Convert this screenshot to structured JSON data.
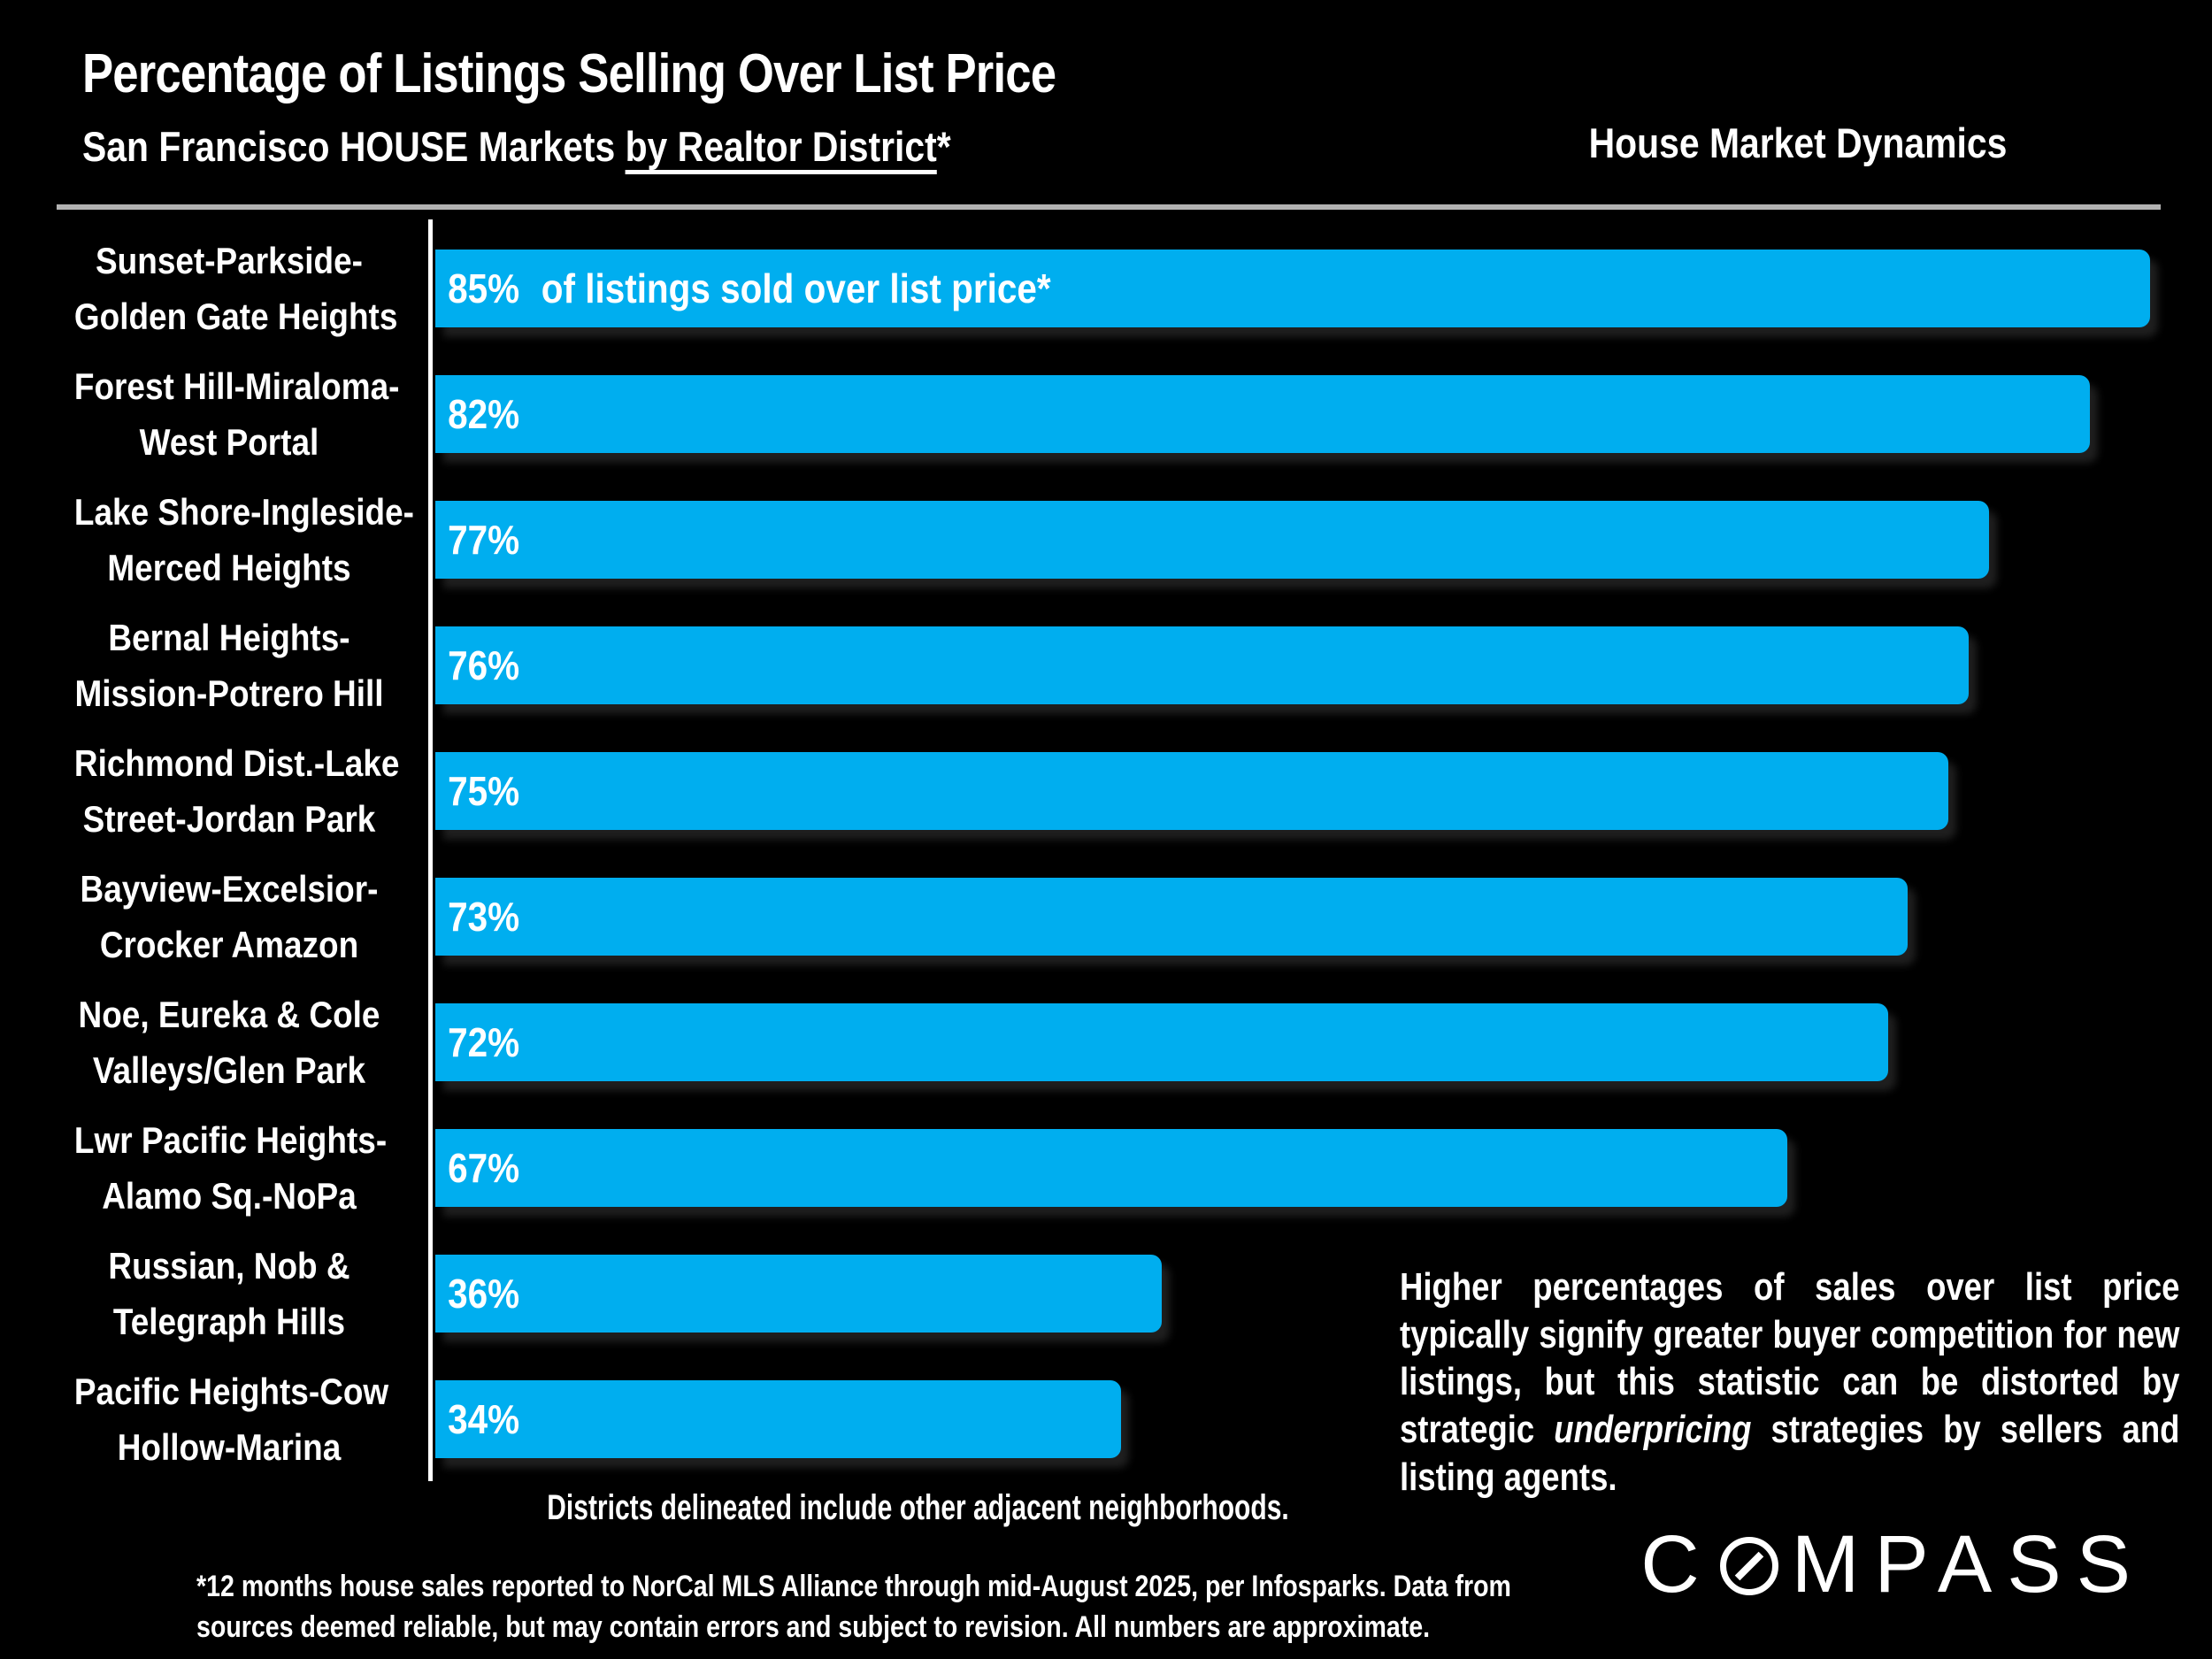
{
  "header": {
    "title": "Percentage of Listings Selling Over List Price",
    "subtitle_prefix": "San Francisco HOUSE Markets ",
    "subtitle_underline": "by Realtor District",
    "subtitle_suffix": "*",
    "right_title": "House Market Dynamics"
  },
  "chart_data": {
    "type": "bar",
    "orientation": "horizontal",
    "title": "Percentage of Listings Selling Over List Price",
    "xlabel": "% of listings sold over list price",
    "xlim": [
      0,
      85
    ],
    "grid": false,
    "legend": false,
    "bar_color": "#00aeef",
    "categories": [
      "Sunset-Parkside-Golden Gate Heights",
      "Forest Hill-Miraloma-West Portal",
      "Lake Shore-Ingleside-Merced Heights",
      "Bernal Heights-Mission-Potrero Hill",
      "Richmond Dist.-Lake Street-Jordan Park",
      "Bayview-Excelsior-Crocker Amazon",
      "Noe, Eureka & Cole Valleys/Glen Park",
      "Lwr Pacific Heights-Alamo Sq.-NoPa",
      "Russian, Nob & Telegraph Hills",
      "Pacific Heights-Cow Hollow-Marina"
    ],
    "values": [
      85,
      82,
      77,
      76,
      75,
      73,
      72,
      67,
      36,
      34
    ],
    "rows": [
      {
        "label_lines": [
          "Sunset-Parkside-",
          "Golden Gate Heights"
        ],
        "value": 85,
        "value_label": "85%",
        "bar_note": "of listings sold over list price*"
      },
      {
        "label_lines": [
          "Forest Hill-Miraloma-",
          "West Portal"
        ],
        "value": 82,
        "value_label": "82%",
        "bar_note": ""
      },
      {
        "label_lines": [
          "Lake Shore-Ingleside-",
          "Merced Heights"
        ],
        "value": 77,
        "value_label": "77%",
        "bar_note": ""
      },
      {
        "label_lines": [
          "Bernal Heights-",
          "Mission-Potrero Hill"
        ],
        "value": 76,
        "value_label": "76%",
        "bar_note": ""
      },
      {
        "label_lines": [
          "Richmond Dist.-Lake",
          "Street-Jordan Park"
        ],
        "value": 75,
        "value_label": "75%",
        "bar_note": ""
      },
      {
        "label_lines": [
          "Bayview-Excelsior-",
          "Crocker Amazon"
        ],
        "value": 73,
        "value_label": "73%",
        "bar_note": ""
      },
      {
        "label_lines": [
          "Noe, Eureka & Cole",
          "Valleys/Glen Park"
        ],
        "value": 72,
        "value_label": "72%",
        "bar_note": ""
      },
      {
        "label_lines": [
          "Lwr Pacific Heights-",
          "Alamo Sq.-NoPa"
        ],
        "value": 67,
        "value_label": "67%",
        "bar_note": ""
      },
      {
        "label_lines": [
          "Russian, Nob &",
          "Telegraph Hills"
        ],
        "value": 36,
        "value_label": "36%",
        "bar_note": ""
      },
      {
        "label_lines": [
          "Pacific Heights-Cow",
          "Hollow-Marina"
        ],
        "value": 34,
        "value_label": "34%",
        "bar_note": ""
      }
    ]
  },
  "side_note": {
    "part1": "Higher percentages of sales over list price typically signify greater buyer competition for new listings, but this statistic can be distorted by strategic ",
    "italic": "underpricing",
    "part2": " strategies by sellers and listing agents."
  },
  "bottom_note": "Districts delineated include other adjacent neighborhoods.",
  "footnote": {
    "lines": [
      "*12 months house sales reported to NorCal MLS Alliance through mid-August 2025, per Infosparks. Data from",
      "sources deemed reliable, but may contain errors and subject to revision. All numbers are approximate."
    ]
  },
  "logo": {
    "brand": "COMPASS",
    "before_o": "C",
    "after_o": "MPASS"
  },
  "colors": {
    "background": "#000000",
    "bar": "#00aeef",
    "text": "#ffffff",
    "divider": "#b2b2b2"
  }
}
